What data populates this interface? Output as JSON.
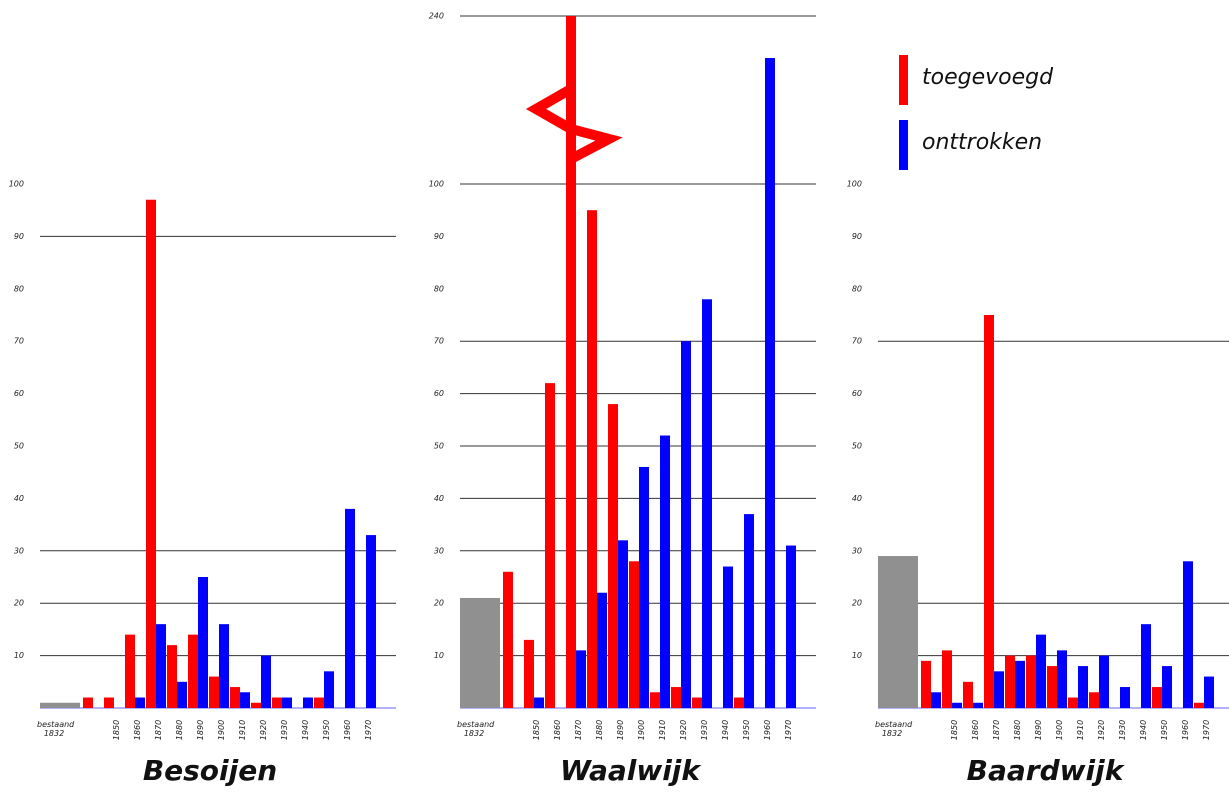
{
  "legend": [
    {
      "name": "toegevoegd",
      "color": "#ff0000"
    },
    {
      "name": "onttrokken",
      "color": "#0000ff"
    }
  ],
  "chart_data": [
    {
      "type": "bar",
      "title": "Besoijen",
      "categories": [
        "bestaand 1832",
        null,
        "1850",
        "1860",
        "1870",
        "1880",
        "1890",
        "1900",
        "1910",
        "1920",
        "1930",
        "1940",
        "1950",
        "1960",
        "1970"
      ],
      "series": [
        {
          "color": "#909090",
          "values": [
            1,
            null,
            null,
            null,
            null,
            null,
            null,
            null,
            null,
            null,
            null,
            null,
            null,
            null,
            null
          ]
        },
        {
          "color": "#ff0000",
          "values": [
            null,
            2,
            2,
            14,
            97,
            12,
            14,
            6,
            4,
            1,
            2,
            null,
            2,
            null,
            null
          ]
        },
        {
          "color": "#0000ff",
          "values": [
            null,
            null,
            null,
            2,
            16,
            5,
            25,
            16,
            3,
            10,
            2,
            2,
            7,
            38,
            33
          ]
        }
      ],
      "ylim": [
        0,
        100
      ],
      "yticks": [
        10,
        20,
        30,
        40,
        50,
        60,
        70,
        80,
        90,
        100
      ],
      "grid_lines": [
        10,
        20,
        30,
        90
      ]
    },
    {
      "type": "bar",
      "title": "Waalwijk",
      "categories": [
        "bestaand 1832",
        null,
        "1850",
        "1860",
        "1870",
        "1880",
        "1890",
        "1900",
        "1910",
        "1920",
        "1930",
        "1940",
        "1950",
        "1960",
        "1970"
      ],
      "series": [
        {
          "color": "#909090",
          "values": [
            21,
            null,
            null,
            null,
            null,
            null,
            null,
            null,
            null,
            null,
            null,
            null,
            null,
            null,
            null
          ]
        },
        {
          "color": "#ff0000",
          "values": [
            null,
            26,
            13,
            62,
            240,
            95,
            58,
            28,
            3,
            4,
            2,
            null,
            2,
            null,
            null
          ]
        },
        {
          "color": "#0000ff",
          "values": [
            null,
            null,
            2,
            null,
            11,
            22,
            32,
            46,
            52,
            70,
            78,
            27,
            37,
            205,
            31
          ]
        }
      ],
      "ylim": [
        0,
        240
      ],
      "axis_break": [
        100,
        240
      ],
      "yticks": [
        10,
        20,
        30,
        40,
        50,
        60,
        70,
        80,
        90,
        100,
        240
      ],
      "grid_lines": [
        10,
        20,
        30,
        40,
        50,
        60,
        70,
        100,
        240
      ]
    },
    {
      "type": "bar",
      "title": "Baardwijk",
      "categories": [
        "bestaand 1832",
        null,
        "1850",
        "1860",
        "1870",
        "1880",
        "1890",
        "1900",
        "1910",
        "1920",
        "1930",
        "1940",
        "1950",
        "1960",
        "1970"
      ],
      "series": [
        {
          "color": "#909090",
          "values": [
            29,
            null,
            null,
            null,
            null,
            null,
            null,
            null,
            null,
            null,
            null,
            null,
            null,
            null,
            null
          ]
        },
        {
          "color": "#ff0000",
          "values": [
            null,
            9,
            11,
            5,
            75,
            10,
            10,
            8,
            2,
            3,
            null,
            null,
            4,
            null,
            1
          ]
        },
        {
          "color": "#0000ff",
          "values": [
            null,
            3,
            1,
            1,
            7,
            9,
            14,
            11,
            8,
            10,
            4,
            16,
            8,
            28,
            6
          ]
        }
      ],
      "ylim": [
        0,
        100
      ],
      "yticks": [
        10,
        20,
        30,
        40,
        50,
        60,
        70,
        80,
        90,
        100
      ],
      "grid_lines": [
        10,
        20,
        70
      ]
    }
  ]
}
